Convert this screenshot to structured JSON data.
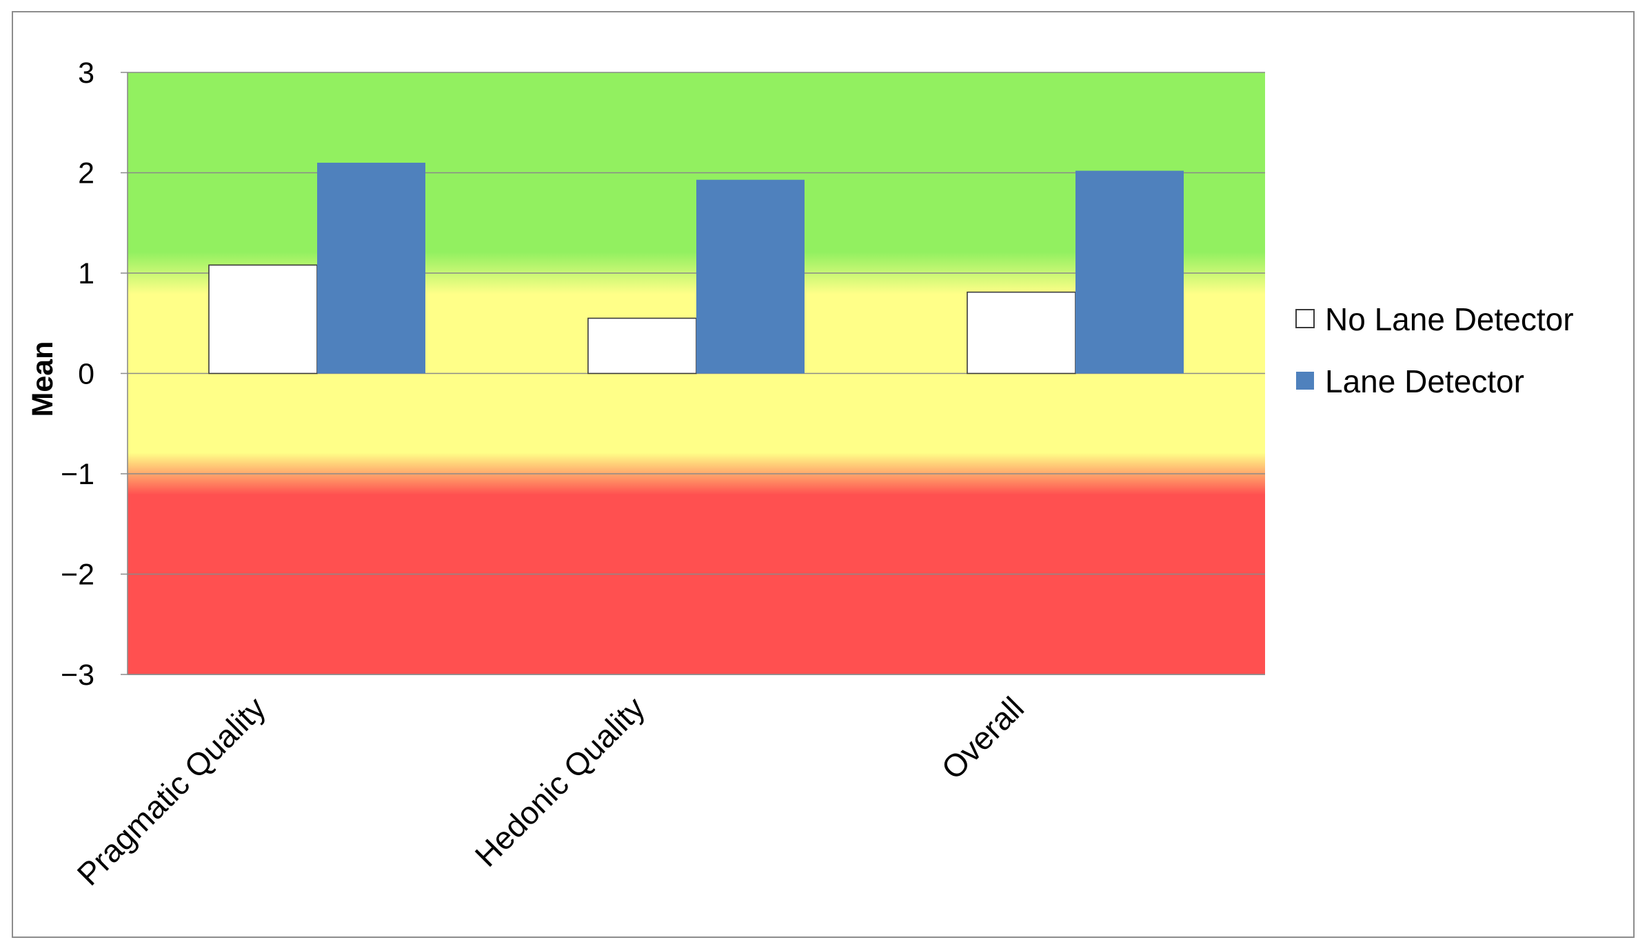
{
  "chart_data": {
    "type": "bar",
    "title": "",
    "xlabel": "",
    "ylabel": "Mean",
    "ylim": [
      -3,
      3
    ],
    "yticks": [
      3,
      2,
      1,
      0,
      -1,
      -2,
      -3
    ],
    "ytick_labels": [
      "3",
      "2",
      "1",
      "0",
      "−1",
      "−2",
      "−3"
    ],
    "categories": [
      "Pragmatic Quality",
      "Hedonic Quality",
      "Overall"
    ],
    "series": [
      {
        "name": "No Lane Detector",
        "values": [
          1.08,
          0.55,
          0.81
        ],
        "color": "#ffffff"
      },
      {
        "name": "Lane Detector",
        "values": [
          2.1,
          1.93,
          2.02
        ],
        "color": "#4f81bd"
      }
    ],
    "background_bands": [
      {
        "from": 1,
        "to": 3,
        "color": "#92f060",
        "meaning": "positive"
      },
      {
        "from": -1,
        "to": 1,
        "color": "#ffff88",
        "meaning": "neutral"
      },
      {
        "from": -3,
        "to": -1,
        "color": "#ff5050",
        "meaning": "negative"
      }
    ],
    "grid": true,
    "legend_position": "right"
  }
}
